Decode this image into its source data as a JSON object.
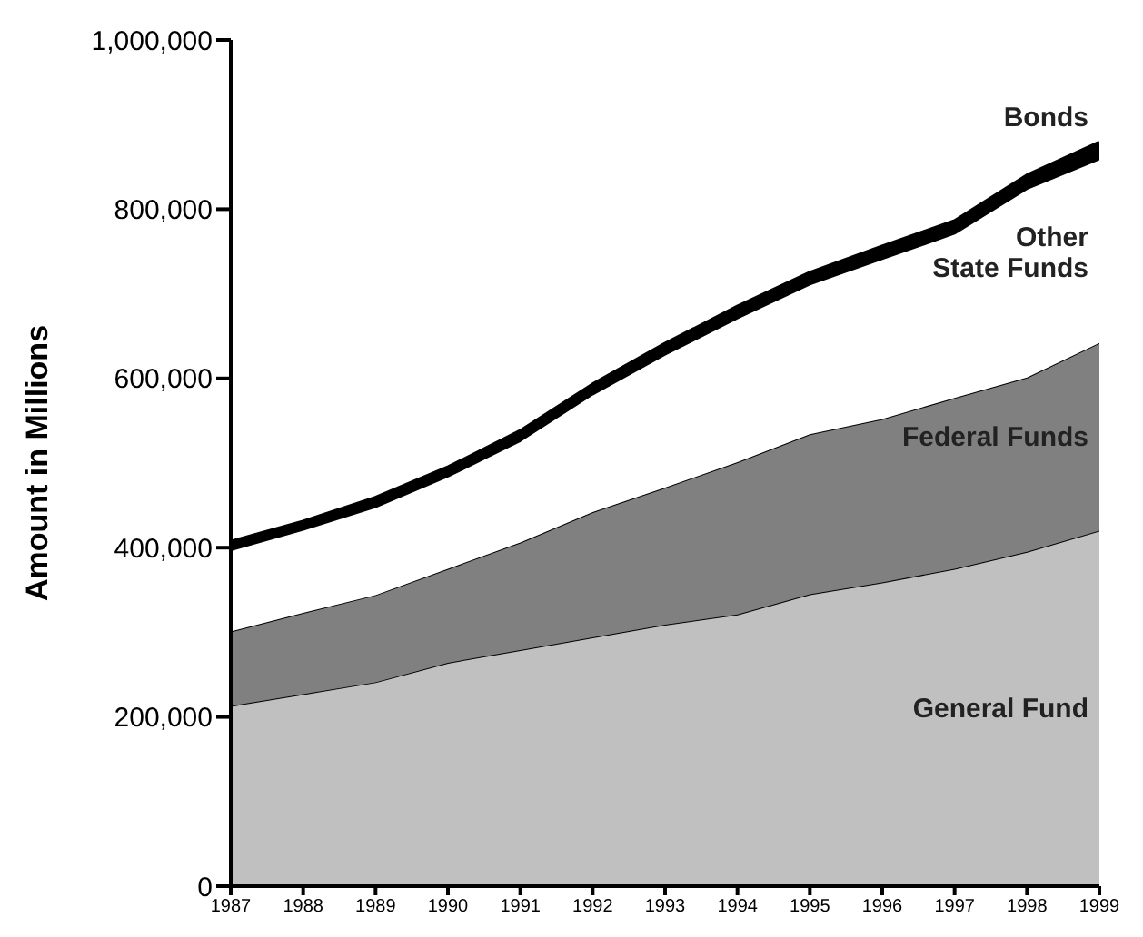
{
  "chart_data": {
    "type": "area",
    "stacked": true,
    "ylabel": "Amount in Millions",
    "x": [
      1987,
      1988,
      1989,
      1990,
      1991,
      1992,
      1993,
      1994,
      1995,
      1996,
      1997,
      1998,
      1999
    ],
    "xlim": [
      1987,
      1999
    ],
    "xticks": [
      1987,
      1988,
      1989,
      1990,
      1991,
      1992,
      1993,
      1994,
      1995,
      1996,
      1997,
      1998,
      1999
    ],
    "ylim": [
      0,
      1000000
    ],
    "yticks": [
      {
        "value": 0,
        "label": "0"
      },
      {
        "value": 200000,
        "label": "200,000"
      },
      {
        "value": 400000,
        "label": "400,000"
      },
      {
        "value": 600000,
        "label": "600,000"
      },
      {
        "value": 800000,
        "label": "800,000"
      },
      {
        "value": 1000000,
        "label": "1,000,000"
      }
    ],
    "series": [
      {
        "name": "General Fund",
        "color": "#c0c0c0",
        "values": [
          213000,
          227000,
          241000,
          264000,
          279000,
          294000,
          309000,
          321000,
          345000,
          359000,
          375000,
          395000,
          420000
        ]
      },
      {
        "name": "Federal Funds",
        "color": "#808080",
        "values": [
          88000,
          96000,
          103000,
          111000,
          127000,
          148000,
          162000,
          180000,
          189000,
          193000,
          202000,
          206000,
          222000
        ]
      },
      {
        "name": "Other State Funds",
        "color": "#ffffff",
        "values": [
          96000,
          98000,
          104000,
          109000,
          120000,
          139000,
          157000,
          170000,
          177000,
          189000,
          194000,
          223000,
          217000
        ]
      },
      {
        "name": "Bonds",
        "color": "#000000",
        "values": [
          10000,
          10000,
          11000,
          11000,
          12000,
          12000,
          13000,
          14000,
          14000,
          15000,
          15000,
          16000,
          20000
        ]
      }
    ]
  }
}
